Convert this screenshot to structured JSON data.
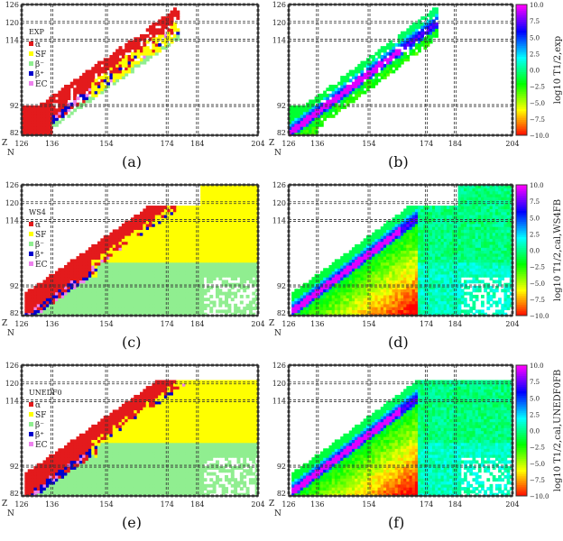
{
  "chart_data": [
    {
      "panel": "(a)",
      "type": "heatmap",
      "label": "EXP",
      "xlabel": "N",
      "ylabel": "Z",
      "xticks": [
        126,
        136,
        154,
        174,
        184,
        204
      ],
      "yticks": [
        82,
        92,
        114,
        120,
        126
      ],
      "xlim": [
        126,
        204
      ],
      "ylim": [
        82,
        126
      ],
      "legend": [
        {
          "name": "α",
          "color": "#e31a1c"
        },
        {
          "name": "SF",
          "color": "#ffff00"
        },
        {
          "name": "β⁻",
          "color": "#90ee90"
        },
        {
          "name": "β⁺",
          "color": "#0000cc"
        },
        {
          "name": "EC",
          "color": "#ee82ee"
        }
      ],
      "legend_position": "top-left",
      "grid": "dashed at magic numbers"
    },
    {
      "panel": "(b)",
      "type": "heatmap",
      "xlabel": "N",
      "ylabel": "Z",
      "xticks": [
        126,
        136,
        154,
        174,
        184,
        204
      ],
      "yticks": [
        82,
        92,
        114,
        120,
        126
      ],
      "xlim": [
        126,
        204
      ],
      "ylim": [
        82,
        126
      ],
      "colorbar": {
        "label": "log10 T1/2,exp",
        "ticks": [
          "10.0",
          "7.5",
          "5.0",
          "2.5",
          "0.0",
          "−2.5",
          "−5.0",
          "−7.5",
          "−10.0"
        ],
        "range": [
          -10,
          10
        ]
      }
    },
    {
      "panel": "(c)",
      "type": "heatmap",
      "label": "WS4",
      "xlabel": "N",
      "ylabel": "Z",
      "xticks": [
        126,
        136,
        154,
        174,
        184,
        204
      ],
      "yticks": [
        82,
        92,
        114,
        120,
        126
      ],
      "xlim": [
        126,
        204
      ],
      "ylim": [
        82,
        126
      ],
      "legend": [
        {
          "name": "α",
          "color": "#e31a1c"
        },
        {
          "name": "SF",
          "color": "#ffff00"
        },
        {
          "name": "β⁻",
          "color": "#90ee90"
        },
        {
          "name": "β⁺",
          "color": "#0000cc"
        },
        {
          "name": "EC",
          "color": "#ee82ee"
        }
      ],
      "legend_position": "top-left"
    },
    {
      "panel": "(d)",
      "type": "heatmap",
      "xlabel": "N",
      "ylabel": "Z",
      "xticks": [
        126,
        136,
        154,
        174,
        184,
        204
      ],
      "yticks": [
        82,
        92,
        114,
        120,
        126
      ],
      "xlim": [
        126,
        204
      ],
      "ylim": [
        82,
        126
      ],
      "colorbar": {
        "label": "log10 T1/2,cal,WS4FB",
        "ticks": [
          "10.0",
          "7.5",
          "5.0",
          "2.5",
          "0.0",
          "−2.5",
          "−5.0",
          "−7.5",
          "−10.0"
        ],
        "range": [
          -10,
          10
        ]
      }
    },
    {
      "panel": "(e)",
      "type": "heatmap",
      "label": "UNEDF0",
      "xlabel": "N",
      "ylabel": "Z",
      "xticks": [
        126,
        136,
        154,
        174,
        184,
        204
      ],
      "yticks": [
        82,
        92,
        114,
        120,
        126
      ],
      "xlim": [
        126,
        204
      ],
      "ylim": [
        82,
        126
      ],
      "legend": [
        {
          "name": "α",
          "color": "#e31a1c"
        },
        {
          "name": "SF",
          "color": "#ffff00"
        },
        {
          "name": "β⁻",
          "color": "#90ee90"
        },
        {
          "name": "β⁺",
          "color": "#0000cc"
        },
        {
          "name": "EC",
          "color": "#ee82ee"
        }
      ],
      "legend_position": "top-left"
    },
    {
      "panel": "(f)",
      "type": "heatmap",
      "xlabel": "N",
      "ylabel": "Z",
      "xticks": [
        126,
        136,
        154,
        174,
        184,
        204
      ],
      "yticks": [
        82,
        92,
        114,
        120,
        126
      ],
      "xlim": [
        126,
        204
      ],
      "ylim": [
        82,
        126
      ],
      "colorbar": {
        "label": "log10 T1/2,cal,UNEDF0FB",
        "ticks": [
          "10.0",
          "7.5",
          "5.0",
          "2.5",
          "0.0",
          "−2.5",
          "−5.0",
          "−7.5",
          "−10.0"
        ],
        "range": [
          -10,
          10
        ]
      }
    }
  ],
  "captions": [
    "(a)",
    "(b)",
    "(c)",
    "(d)",
    "(e)",
    "(f)"
  ]
}
